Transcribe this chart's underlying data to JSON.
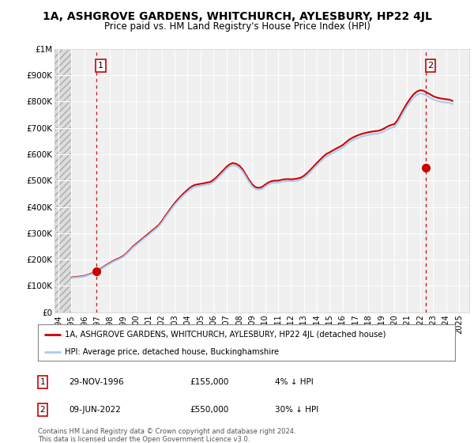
{
  "title": "1A, ASHGROVE GARDENS, WHITCHURCH, AYLESBURY, HP22 4JL",
  "subtitle": "Price paid vs. HM Land Registry's House Price Index (HPI)",
  "ylim": [
    0,
    1000000
  ],
  "xlim_start": 1993.7,
  "xlim_end": 2025.8,
  "yticks": [
    0,
    100000,
    200000,
    300000,
    400000,
    500000,
    600000,
    700000,
    800000,
    900000,
    1000000
  ],
  "ytick_labels": [
    "£0",
    "£100K",
    "£200K",
    "£300K",
    "£400K",
    "£500K",
    "£600K",
    "£700K",
    "£800K",
    "£900K",
    "£1M"
  ],
  "xticks": [
    1994,
    1995,
    1996,
    1997,
    1998,
    1999,
    2000,
    2001,
    2002,
    2003,
    2004,
    2005,
    2006,
    2007,
    2008,
    2009,
    2010,
    2011,
    2012,
    2013,
    2014,
    2015,
    2016,
    2017,
    2018,
    2019,
    2020,
    2021,
    2022,
    2023,
    2024,
    2025
  ],
  "hpi_x": [
    1995.0,
    1995.25,
    1995.5,
    1995.75,
    1996.0,
    1996.25,
    1996.5,
    1996.75,
    1997.0,
    1997.25,
    1997.5,
    1997.75,
    1998.0,
    1998.25,
    1998.5,
    1998.75,
    1999.0,
    1999.25,
    1999.5,
    1999.75,
    2000.0,
    2000.25,
    2000.5,
    2000.75,
    2001.0,
    2001.25,
    2001.5,
    2001.75,
    2002.0,
    2002.25,
    2002.5,
    2002.75,
    2003.0,
    2003.25,
    2003.5,
    2003.75,
    2004.0,
    2004.25,
    2004.5,
    2004.75,
    2005.0,
    2005.25,
    2005.5,
    2005.75,
    2006.0,
    2006.25,
    2006.5,
    2006.75,
    2007.0,
    2007.25,
    2007.5,
    2007.75,
    2008.0,
    2008.25,
    2008.5,
    2008.75,
    2009.0,
    2009.25,
    2009.5,
    2009.75,
    2010.0,
    2010.25,
    2010.5,
    2010.75,
    2011.0,
    2011.25,
    2011.5,
    2011.75,
    2012.0,
    2012.25,
    2012.5,
    2012.75,
    2013.0,
    2013.25,
    2013.5,
    2013.75,
    2014.0,
    2014.25,
    2014.5,
    2014.75,
    2015.0,
    2015.25,
    2015.5,
    2015.75,
    2016.0,
    2016.25,
    2016.5,
    2016.75,
    2017.0,
    2017.25,
    2017.5,
    2017.75,
    2018.0,
    2018.25,
    2018.5,
    2018.75,
    2019.0,
    2019.25,
    2019.5,
    2019.75,
    2020.0,
    2020.25,
    2020.5,
    2020.75,
    2021.0,
    2021.25,
    2021.5,
    2021.75,
    2022.0,
    2022.25,
    2022.5,
    2022.75,
    2023.0,
    2023.25,
    2023.5,
    2023.75,
    2024.0,
    2024.25,
    2024.5
  ],
  "hpi_y": [
    130000,
    132000,
    133000,
    134000,
    136000,
    140000,
    144000,
    148000,
    155000,
    162000,
    170000,
    178000,
    185000,
    192000,
    198000,
    203000,
    210000,
    220000,
    232000,
    245000,
    255000,
    265000,
    275000,
    285000,
    295000,
    305000,
    315000,
    325000,
    340000,
    358000,
    375000,
    392000,
    408000,
    422000,
    435000,
    447000,
    458000,
    468000,
    475000,
    478000,
    480000,
    482000,
    485000,
    487000,
    495000,
    505000,
    518000,
    530000,
    543000,
    553000,
    558000,
    555000,
    548000,
    535000,
    515000,
    495000,
    478000,
    468000,
    465000,
    468000,
    477000,
    485000,
    490000,
    492000,
    492000,
    495000,
    497000,
    498000,
    497000,
    498000,
    500000,
    503000,
    510000,
    520000,
    532000,
    545000,
    558000,
    570000,
    582000,
    592000,
    598000,
    605000,
    612000,
    618000,
    625000,
    635000,
    645000,
    652000,
    658000,
    663000,
    667000,
    670000,
    673000,
    675000,
    677000,
    678000,
    682000,
    688000,
    695000,
    700000,
    703000,
    718000,
    740000,
    762000,
    782000,
    800000,
    815000,
    825000,
    830000,
    828000,
    822000,
    815000,
    808000,
    803000,
    800000,
    798000,
    796000,
    795000,
    790000
  ],
  "marker1_x": 1996.917,
  "marker1_y": 155000,
  "marker1_label": "1",
  "marker1_date": "29-NOV-1996",
  "marker1_price": "£155,000",
  "marker1_hpi": "4% ↓ HPI",
  "marker2_x": 2022.44,
  "marker2_y": 550000,
  "marker2_label": "2",
  "marker2_date": "09-JUN-2022",
  "marker2_price": "£550,000",
  "marker2_hpi": "30% ↓ HPI",
  "hpi_color": "#aaccee",
  "price_color": "#cc0000",
  "marker_color": "#cc0000",
  "hatch_end": 1995.0,
  "legend_line1": "1A, ASHGROVE GARDENS, WHITCHURCH, AYLESBURY, HP22 4JL (detached house)",
  "legend_line2": "HPI: Average price, detached house, Buckinghamshire",
  "footnote": "Contains HM Land Registry data © Crown copyright and database right 2024.\nThis data is licensed under the Open Government Licence v3.0.",
  "background_color": "#ffffff",
  "plot_bg_color": "#f0f0f0",
  "grid_color": "#ffffff",
  "title_fontsize": 10,
  "subtitle_fontsize": 8.5
}
